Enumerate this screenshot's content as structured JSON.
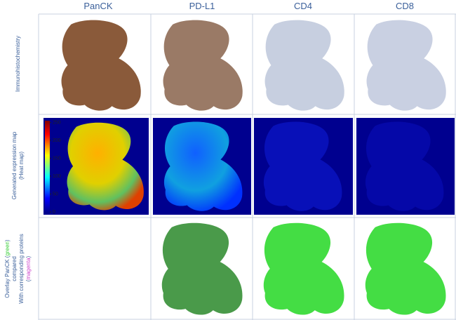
{
  "columns": [
    "PanCK",
    "PD-L1",
    "CD4",
    "CD8"
  ],
  "rows": [
    {
      "label_lines": [
        [
          "Immunohistochemistry"
        ]
      ]
    },
    {
      "label_lines": [
        [
          "Generated expression map"
        ],
        [
          "(Heat map)"
        ]
      ]
    },
    {
      "label_lines": [
        [
          "Overlay PanCK (",
          "green",
          ")"
        ],
        [
          "compared"
        ],
        [
          "With corresponding proteins"
        ],
        [
          "(",
          "magenta",
          ")"
        ]
      ]
    }
  ],
  "colorbar": {
    "range": [
      0,
      255
    ],
    "ticks": [
      0,
      50,
      100,
      150,
      200,
      250
    ]
  }
}
